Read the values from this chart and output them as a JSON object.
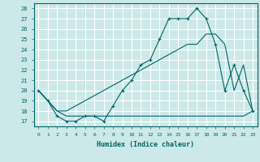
{
  "xlabel": "Humidex (Indice chaleur)",
  "xlim": [
    -0.5,
    23.5
  ],
  "ylim": [
    16.5,
    28.5
  ],
  "xticks": [
    0,
    1,
    2,
    3,
    4,
    5,
    6,
    7,
    8,
    9,
    10,
    11,
    12,
    13,
    14,
    15,
    16,
    17,
    18,
    19,
    20,
    21,
    22,
    23
  ],
  "yticks": [
    17,
    18,
    19,
    20,
    21,
    22,
    23,
    24,
    25,
    26,
    27,
    28
  ],
  "bg_color": "#cce8e8",
  "grid_color": "#ffffff",
  "line_color": "#006666",
  "line1_x": [
    0,
    1,
    2,
    3,
    4,
    5,
    6,
    7,
    8,
    9,
    10,
    11,
    12,
    13,
    14,
    15,
    16,
    17,
    18,
    19,
    20,
    21,
    22,
    23
  ],
  "line1_y": [
    20,
    19,
    17.5,
    17,
    17,
    17.5,
    17.5,
    17,
    18.5,
    20,
    21,
    22.5,
    23,
    25,
    27,
    27,
    27,
    28,
    27,
    24.5,
    20,
    22.5,
    20,
    18
  ],
  "line2_x": [
    0,
    2,
    3,
    4,
    5,
    6,
    7,
    8,
    9,
    10,
    11,
    12,
    13,
    14,
    15,
    16,
    17,
    18,
    19,
    20,
    21,
    22,
    23
  ],
  "line2_y": [
    20,
    18,
    17.5,
    17.5,
    17.5,
    17.5,
    17.5,
    17.5,
    17.5,
    17.5,
    17.5,
    17.5,
    17.5,
    17.5,
    17.5,
    17.5,
    17.5,
    17.5,
    17.5,
    17.5,
    17.5,
    17.5,
    18
  ],
  "line3_x": [
    0,
    2,
    3,
    4,
    5,
    6,
    7,
    8,
    9,
    10,
    11,
    12,
    13,
    14,
    15,
    16,
    17,
    18,
    19,
    20,
    21,
    22,
    23
  ],
  "line3_y": [
    20,
    18,
    18,
    18.5,
    19,
    19.5,
    20,
    20.5,
    21,
    21.5,
    22,
    22.5,
    23,
    23.5,
    24,
    24.5,
    24.5,
    25.5,
    25.5,
    24.5,
    20,
    22.5,
    18
  ]
}
